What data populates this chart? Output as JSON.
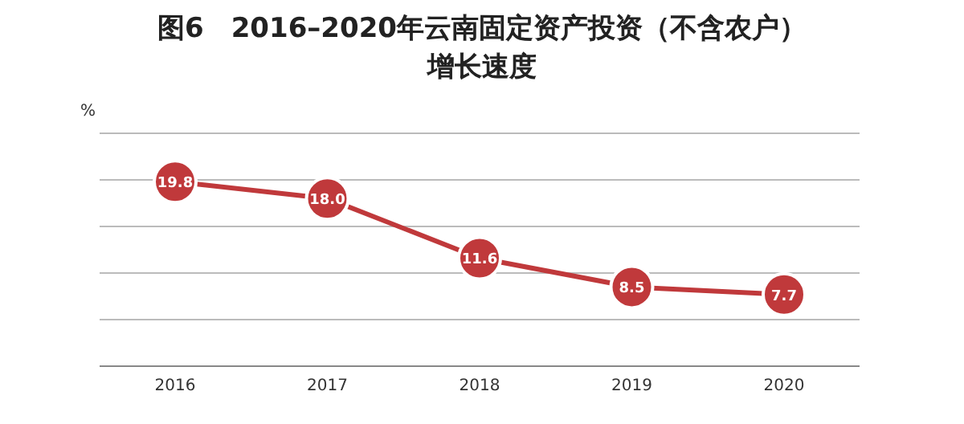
{
  "chart_data": {
    "type": "line",
    "title": "图6　2016–2020年云南固定资产投资（不含农户）增长速度",
    "ylabel": "%",
    "categories": [
      "2016",
      "2017",
      "2018",
      "2019",
      "2020"
    ],
    "series": [
      {
        "color": "#c0393b",
        "values": [
          19.8,
          18.0,
          11.6,
          8.5,
          7.7
        ],
        "value_labels": [
          "19.8",
          "18.0",
          "11.6",
          "8.5",
          "7.7"
        ]
      }
    ],
    "ylim": [
      0,
      25
    ],
    "yticks": [
      {
        "value": 0,
        "label": null
      },
      {
        "value": 5,
        "label": null
      },
      {
        "value": 10,
        "label": null
      },
      {
        "value": 15,
        "label": null
      },
      {
        "value": 20,
        "label": null
      },
      {
        "value": 25,
        "label": null
      }
    ],
    "tick_labels": "x",
    "grid": "y",
    "marker": "circle",
    "legend": false
  }
}
